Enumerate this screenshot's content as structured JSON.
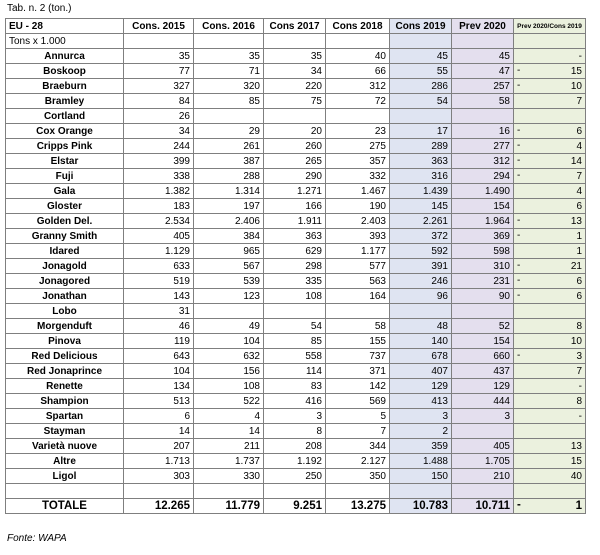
{
  "caption": "Tab. n. 2 (ton.)",
  "source": "Fonte: WAPA",
  "headers": [
    "EU - 28",
    "Cons. 2015",
    "Cons. 2016",
    "Cons 2017",
    "Cons 2018",
    "Cons 2019",
    "Prev 2020",
    "Prev 2020/Cons 2019"
  ],
  "unit_label": "Tons x 1.000",
  "rows": [
    {
      "name": "Annurca",
      "v": [
        "35",
        "35",
        "35",
        "40",
        "45",
        "45"
      ],
      "sign": "",
      "delta": "-"
    },
    {
      "name": "Boskoop",
      "v": [
        "77",
        "71",
        "34",
        "66",
        "55",
        "47"
      ],
      "sign": "-",
      "delta": "15"
    },
    {
      "name": "Braeburn",
      "v": [
        "327",
        "320",
        "220",
        "312",
        "286",
        "257"
      ],
      "sign": "-",
      "delta": "10"
    },
    {
      "name": "Bramley",
      "v": [
        "84",
        "85",
        "75",
        "72",
        "54",
        "58"
      ],
      "sign": "",
      "delta": "7"
    },
    {
      "name": "Cortland",
      "v": [
        "26",
        "",
        "",
        "",
        "",
        ""
      ],
      "sign": "",
      "delta": ""
    },
    {
      "name": "Cox Orange",
      "v": [
        "34",
        "29",
        "20",
        "23",
        "17",
        "16"
      ],
      "sign": "-",
      "delta": "6"
    },
    {
      "name": "Cripps Pink",
      "v": [
        "244",
        "261",
        "260",
        "275",
        "289",
        "277"
      ],
      "sign": "-",
      "delta": "4"
    },
    {
      "name": "Elstar",
      "v": [
        "399",
        "387",
        "265",
        "357",
        "363",
        "312"
      ],
      "sign": "-",
      "delta": "14"
    },
    {
      "name": "Fuji",
      "v": [
        "338",
        "288",
        "290",
        "332",
        "316",
        "294"
      ],
      "sign": "-",
      "delta": "7"
    },
    {
      "name": "Gala",
      "v": [
        "1.382",
        "1.314",
        "1.271",
        "1.467",
        "1.439",
        "1.490"
      ],
      "sign": "",
      "delta": "4"
    },
    {
      "name": "Gloster",
      "v": [
        "183",
        "197",
        "166",
        "190",
        "145",
        "154"
      ],
      "sign": "",
      "delta": "6"
    },
    {
      "name": "Golden Del.",
      "v": [
        "2.534",
        "2.406",
        "1.911",
        "2.403",
        "2.261",
        "1.964"
      ],
      "sign": "-",
      "delta": "13"
    },
    {
      "name": "Granny Smith",
      "v": [
        "405",
        "384",
        "363",
        "393",
        "372",
        "369"
      ],
      "sign": "-",
      "delta": "1"
    },
    {
      "name": "Idared",
      "v": [
        "1.129",
        "965",
        "629",
        "1.177",
        "592",
        "598"
      ],
      "sign": "",
      "delta": "1"
    },
    {
      "name": "Jonagold",
      "v": [
        "633",
        "567",
        "298",
        "577",
        "391",
        "310"
      ],
      "sign": "-",
      "delta": "21"
    },
    {
      "name": "Jonagored",
      "v": [
        "519",
        "539",
        "335",
        "563",
        "246",
        "231"
      ],
      "sign": "-",
      "delta": "6"
    },
    {
      "name": "Jonathan",
      "v": [
        "143",
        "123",
        "108",
        "164",
        "96",
        "90"
      ],
      "sign": "-",
      "delta": "6"
    },
    {
      "name": "Lobo",
      "v": [
        "31",
        "",
        "",
        "",
        "",
        ""
      ],
      "sign": "",
      "delta": ""
    },
    {
      "name": "Morgenduft",
      "v": [
        "46",
        "49",
        "54",
        "58",
        "48",
        "52"
      ],
      "sign": "",
      "delta": "8"
    },
    {
      "name": "Pinova",
      "v": [
        "119",
        "104",
        "85",
        "155",
        "140",
        "154"
      ],
      "sign": "",
      "delta": "10"
    },
    {
      "name": "Red Delicious",
      "v": [
        "643",
        "632",
        "558",
        "737",
        "678",
        "660"
      ],
      "sign": "-",
      "delta": "3"
    },
    {
      "name": "Red Jonaprince",
      "v": [
        "104",
        "156",
        "114",
        "371",
        "407",
        "437"
      ],
      "sign": "",
      "delta": "7"
    },
    {
      "name": "Renette",
      "v": [
        "134",
        "108",
        "83",
        "142",
        "129",
        "129"
      ],
      "sign": "",
      "delta": "-"
    },
    {
      "name": "Shampion",
      "v": [
        "513",
        "522",
        "416",
        "569",
        "413",
        "444"
      ],
      "sign": "",
      "delta": "8"
    },
    {
      "name": "Spartan",
      "v": [
        "6",
        "4",
        "3",
        "5",
        "3",
        "3"
      ],
      "sign": "",
      "delta": "-"
    },
    {
      "name": "Stayman",
      "v": [
        "14",
        "14",
        "8",
        "7",
        "2",
        ""
      ],
      "sign": "",
      "delta": ""
    },
    {
      "name": "Varietà nuove",
      "v": [
        "207",
        "211",
        "208",
        "344",
        "359",
        "405"
      ],
      "sign": "",
      "delta": "13"
    },
    {
      "name": "Altre",
      "v": [
        "1.713",
        "1.737",
        "1.192",
        "2.127",
        "1.488",
        "1.705"
      ],
      "sign": "",
      "delta": "15"
    },
    {
      "name": "Ligol",
      "v": [
        "303",
        "330",
        "250",
        "350",
        "150",
        "210"
      ],
      "sign": "",
      "delta": "40"
    }
  ],
  "total": {
    "name": "TOTALE",
    "v": [
      "12.265",
      "11.779",
      "9.251",
      "13.275",
      "10.783",
      "10.711"
    ],
    "sign": "-",
    "delta": "1"
  },
  "colors": {
    "cons2019_bg": "#dfe4f2",
    "prev2020_bg": "#e4dfee",
    "delta_bg": "#ebf1de",
    "border": "#7f7f7f"
  }
}
